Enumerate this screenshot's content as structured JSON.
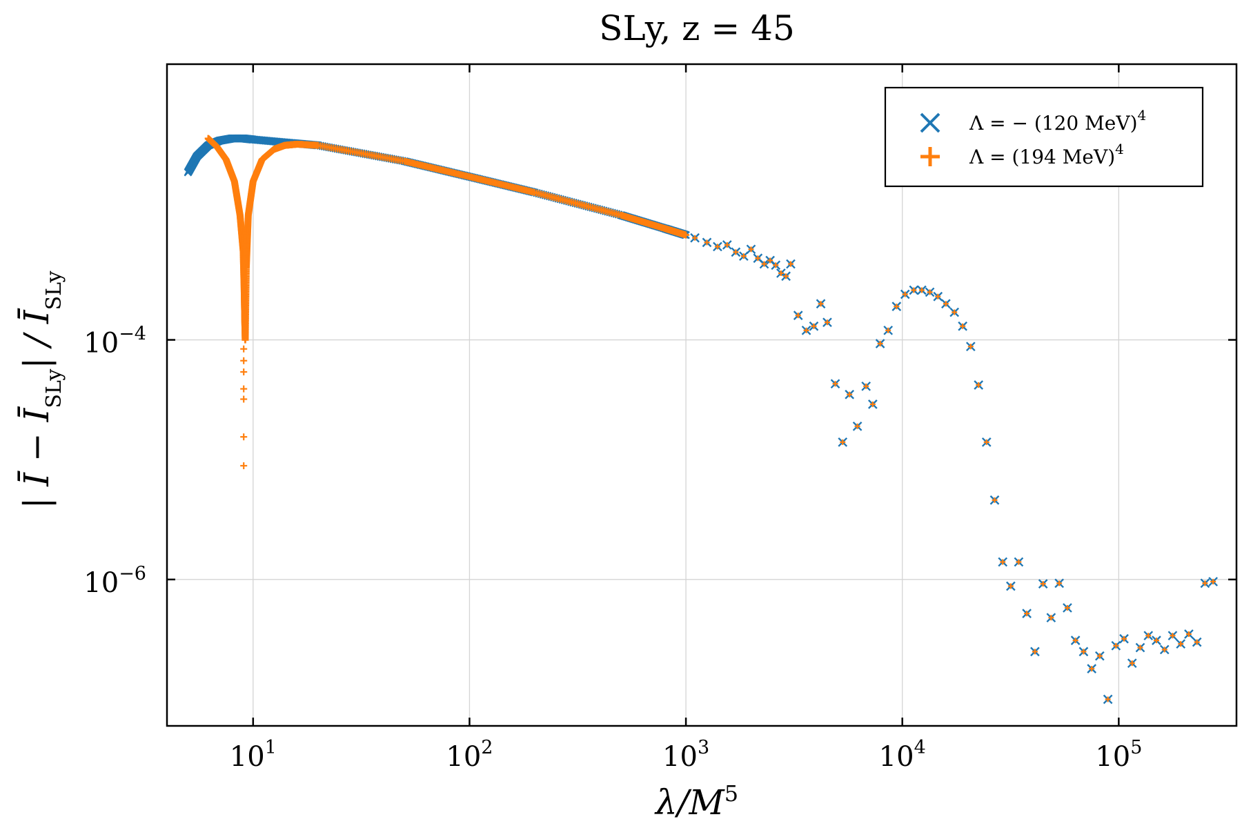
{
  "chart_data": {
    "type": "scatter",
    "title": "SLy,  z = 45",
    "xlabel": "λ/M^5",
    "ylabel": "|Ī − Ī_SLy| / Ī_SLy",
    "xscale": "log",
    "yscale": "log",
    "xlim": [
      4,
      350000
    ],
    "ylim": [
      6e-08,
      0.02
    ],
    "grid": true,
    "x_ticks": [
      {
        "base": "10",
        "exp": "1",
        "value": 10
      },
      {
        "base": "10",
        "exp": "2",
        "value": 100
      },
      {
        "base": "10",
        "exp": "3",
        "value": 1000
      },
      {
        "base": "10",
        "exp": "4",
        "value": 10000
      },
      {
        "base": "10",
        "exp": "5",
        "value": 100000
      }
    ],
    "y_ticks": [
      {
        "base": "10",
        "exp": "−4",
        "value": 0.0001
      },
      {
        "base": "10",
        "exp": "−6",
        "value": 1e-06
      }
    ],
    "legend": {
      "position": "top-right",
      "entries": [
        {
          "marker": "×",
          "color": "#1f77b4",
          "label": "Λ =  − (120 MeV)",
          "sup": "4"
        },
        {
          "marker": "+",
          "color": "#ff7f0e",
          "label": "Λ = (194 MeV)",
          "sup": "4"
        }
      ]
    },
    "series": [
      {
        "name": "Λ = −(120 MeV)^4",
        "marker": "x",
        "color": "#1f77b4",
        "segments": [
          {
            "x": [
              5.0,
              5.5,
              6.2,
              7.0,
              8.0,
              9.0,
              10.0,
              15.0,
              20.0,
              50.0,
              100.0,
              200.0,
              500.0,
              800.0,
              1000.0
            ],
            "y": [
              0.0025,
              0.0034,
              0.0042,
              0.0046,
              0.0048,
              0.0048,
              0.0047,
              0.0044,
              0.0042,
              0.0031,
              0.0023,
              0.0017,
              0.0011,
              0.00085,
              0.00075
            ],
            "dense": true
          }
        ],
        "points": {
          "x": [
            1100,
            1250,
            1400,
            1550,
            1700,
            1850,
            2000,
            2150,
            2300,
            2450,
            2600,
            2750,
            2900,
            3050,
            3300,
            3600,
            3900,
            4200,
            4500,
            4900,
            5300,
            5700,
            6200,
            6800,
            7300,
            7900,
            8600,
            9400,
            10300,
            11300,
            12300,
            13400,
            14600,
            15900,
            17400,
            19000,
            20700,
            22500,
            24500,
            26700,
            29100,
            31700,
            34500,
            37600,
            41000,
            44700,
            48700,
            53100,
            57900,
            63100,
            68800,
            75000,
            81700,
            89100,
            97100,
            105800,
            115300,
            125700,
            137000,
            149300,
            162800,
            177400,
            193400,
            210800,
            229800,
            250400,
            273000
          ],
          "y": [
            0.00071,
            0.00065,
            0.0006,
            0.00062,
            0.00054,
            0.0005,
            0.00057,
            0.00048,
            0.00043,
            0.00046,
            0.00042,
            0.00036,
            0.00034,
            0.00043,
            0.00016,
            0.00012,
            0.00013,
            0.0002,
            0.00014,
            4.3e-05,
            1.4e-05,
            3.5e-05,
            1.9e-05,
            4.1e-05,
            2.9e-05,
            9.3e-05,
            0.00012,
            0.00019,
            0.00024,
            0.00026,
            0.00026,
            0.00025,
            0.00023,
            0.0002,
            0.00017,
            0.00013,
            8.8e-05,
            4.2e-05,
            1.4e-05,
            4.6e-06,
            1.4e-06,
            8.8e-07,
            1.4e-06,
            5.2e-07,
            2.5e-07,
            9.2e-07,
            4.8e-07,
            9.3e-07,
            5.8e-07,
            3.1e-07,
            2.5e-07,
            1.8e-07,
            2.3e-07,
            1e-07,
            2.8e-07,
            3.2e-07,
            2e-07,
            2.7e-07,
            3.4e-07,
            3.1e-07,
            2.6e-07,
            3.4e-07,
            2.9e-07,
            3.5e-07,
            3e-07,
            9.3e-07,
            9.6e-07
          ]
        }
      },
      {
        "name": "Λ = (194 MeV)^4",
        "marker": "+",
        "color": "#ff7f0e",
        "segments": [
          {
            "x": [
              6.2,
              6.8,
              7.5,
              8.2,
              8.7,
              9.0,
              9.1,
              9.15,
              9.2
            ],
            "y": [
              0.0048,
              0.0041,
              0.0032,
              0.0021,
              0.0011,
              0.00055,
              0.00025,
              0.00015,
              0.0001
            ],
            "dense": true
          },
          {
            "x": [
              9.2,
              9.3,
              9.5,
              10.0,
              11.0,
              12.5,
              14.0,
              16.0,
              20.0,
              50.0,
              100.0,
              200.0,
              500.0,
              800.0,
              1000.0
            ],
            "y": [
              0.0001,
              0.0004,
              0.0011,
              0.0021,
              0.0032,
              0.0039,
              0.0042,
              0.0043,
              0.0042,
              0.0031,
              0.0023,
              0.0017,
              0.0011,
              0.00085,
              0.00075
            ],
            "dense": true
          }
        ],
        "extra_points": {
          "x": [
            9.05,
            9.05,
            9.05,
            9.05,
            9.05,
            9.05,
            9.05
          ],
          "y": [
            8.4e-05,
            6.7e-05,
            5.4e-05,
            3.9e-05,
            3.2e-05,
            1.55e-05,
            8.9e-06
          ]
        }
      }
    ]
  }
}
